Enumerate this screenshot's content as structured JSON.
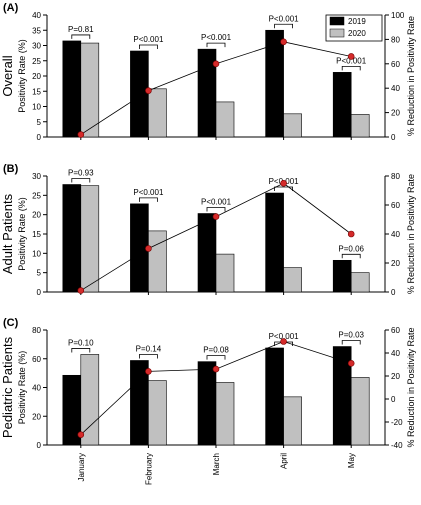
{
  "chart_data": [
    {
      "type": "bar",
      "panel_label": "(A)",
      "side_title": "Overall",
      "categories": [
        "January",
        "February",
        "March",
        "April",
        "May"
      ],
      "ylabel": "Positivity Rate (%)",
      "ylim": [
        0,
        40
      ],
      "yticks": [
        "0",
        "5",
        "10",
        "15",
        "20",
        "25",
        "30",
        "35",
        "40"
      ],
      "ylabel_right": "% Reduction in Positivity Rate",
      "ylim_right": [
        0,
        100
      ],
      "yticks_right": [
        "0",
        "20",
        "40",
        "60",
        "80",
        "100"
      ],
      "series": [
        {
          "name": "2019",
          "color": "#000000",
          "values": [
            31.5,
            28.2,
            28.8,
            35.0,
            21.2
          ]
        },
        {
          "name": "2020",
          "color": "#c0c0c0",
          "values": [
            30.8,
            15.8,
            11.5,
            7.6,
            7.4
          ]
        }
      ],
      "line": {
        "name": "% Reduction in Positivity Rate",
        "axis": "right",
        "values": [
          2,
          38,
          60,
          78,
          66
        ]
      },
      "p_values": [
        "P=0.81",
        "P<0.001",
        "P<0.001",
        "P<0.001",
        "P<0.001"
      ],
      "legend": {
        "placement": "top-right",
        "items": [
          "2019",
          "2020"
        ]
      }
    },
    {
      "type": "bar",
      "panel_label": "(B)",
      "side_title": "Adult Patients",
      "categories": [
        "January",
        "February",
        "March",
        "April",
        "May"
      ],
      "ylabel": "Positivity Rate (%)",
      "ylim": [
        0,
        30
      ],
      "yticks": [
        "0",
        "5",
        "10",
        "15",
        "20",
        "25",
        "30"
      ],
      "ylabel_right": "% Reduction in Positivity Rate",
      "ylim_right": [
        0,
        80
      ],
      "yticks_right": [
        "0",
        "20",
        "40",
        "60",
        "80"
      ],
      "series": [
        {
          "name": "2019",
          "color": "#000000",
          "values": [
            27.8,
            22.8,
            20.3,
            25.6,
            8.2
          ]
        },
        {
          "name": "2020",
          "color": "#c0c0c0",
          "values": [
            27.5,
            15.8,
            9.8,
            6.3,
            5.0
          ]
        }
      ],
      "line": {
        "name": "% Reduction in Positivity Rate",
        "axis": "right",
        "values": [
          1,
          30,
          52,
          75,
          40
        ]
      },
      "p_values": [
        "P=0.93",
        "P<0.001",
        "P<0.001",
        "P<0.001",
        "P=0.06"
      ]
    },
    {
      "type": "bar",
      "panel_label": "(C)",
      "side_title": "Pediatric Patients",
      "categories": [
        "January",
        "February",
        "March",
        "April",
        "May"
      ],
      "ylabel": "Positivity Rate (%)",
      "ylim": [
        0,
        80
      ],
      "yticks": [
        "0",
        "20",
        "40",
        "60",
        "80"
      ],
      "ylabel_right": "% Reduction in Positivity Rate",
      "ylim_right": [
        -40,
        60
      ],
      "yticks_right": [
        "-40",
        "-20",
        "0",
        "20",
        "40",
        "60"
      ],
      "series": [
        {
          "name": "2019",
          "color": "#000000",
          "values": [
            48.5,
            58.8,
            58.0,
            67.5,
            68.5
          ]
        },
        {
          "name": "2020",
          "color": "#c0c0c0",
          "values": [
            63.0,
            44.8,
            43.5,
            33.5,
            47.0
          ]
        }
      ],
      "line": {
        "name": "% Reduction in Positivity Rate",
        "axis": "right",
        "values": [
          -31,
          24,
          26,
          50,
          31
        ]
      },
      "p_values": [
        "P=0.10",
        "P=0.14",
        "P=0.08",
        "P<0.001",
        "P=0.03"
      ]
    }
  ]
}
